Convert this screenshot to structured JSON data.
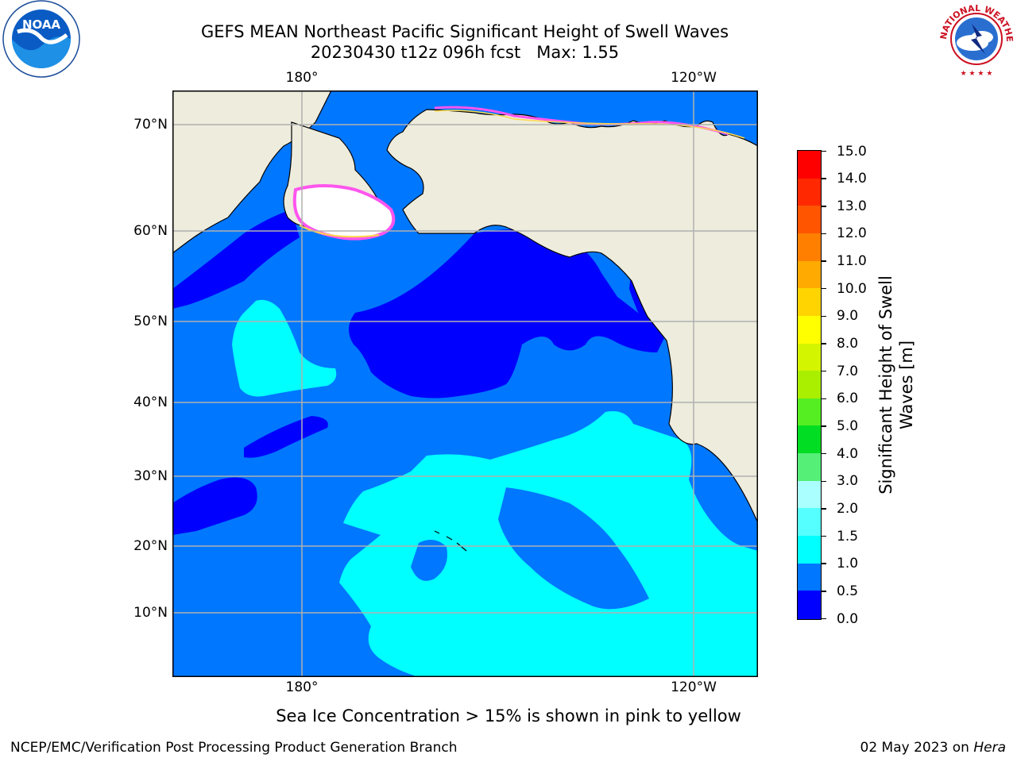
{
  "title": {
    "line1": "GEFS MEAN Northeast Pacific Significant Height of Swell Waves",
    "line2": "20230430 t12z 096h fcst   Max: 1.55"
  },
  "map": {
    "lon_labels_top": [
      "180°",
      "120°W"
    ],
    "lon_labels_bottom": [
      "180°",
      "120°W"
    ],
    "lat_labels": [
      "70°N",
      "60°N",
      "50°N",
      "40°N",
      "30°N",
      "20°N",
      "10°N"
    ],
    "colors": {
      "land": "#EDECDD",
      "sea_ice": "#FFFFFF",
      "ice_edge_pink": "#FF55EE",
      "ice_edge_yellow": "#FFD84A",
      "gridline": "#B0B0B0"
    }
  },
  "colorbar": {
    "title_line1": "Significant Height of Swell",
    "title_line2": "Waves [m]",
    "tick_labels": [
      "15.0",
      "14.0",
      "13.0",
      "12.0",
      "11.0",
      "10.0",
      "9.0",
      "8.0",
      "7.0",
      "6.0",
      "5.0",
      "4.0",
      "3.0",
      "2.0",
      "1.5",
      "1.0",
      "0.5",
      "0.0"
    ],
    "segments": [
      {
        "range": "14.0-15.0",
        "color": "#FF0000"
      },
      {
        "range": "13.0-14.0",
        "color": "#FF2800"
      },
      {
        "range": "12.0-13.0",
        "color": "#FF5500"
      },
      {
        "range": "11.0-12.0",
        "color": "#FF8000"
      },
      {
        "range": "10.0-11.0",
        "color": "#FFAA00"
      },
      {
        "range": "9.0-10.0",
        "color": "#FFD400"
      },
      {
        "range": "8.0-9.0",
        "color": "#FFFF00"
      },
      {
        "range": "7.0-8.0",
        "color": "#D4F500"
      },
      {
        "range": "6.0-7.0",
        "color": "#AAEE00"
      },
      {
        "range": "5.0-6.0",
        "color": "#55EE22"
      },
      {
        "range": "4.0-5.0",
        "color": "#00DD22"
      },
      {
        "range": "3.0-4.0",
        "color": "#55EE77"
      },
      {
        "range": "2.0-3.0",
        "color": "#AAFFFF"
      },
      {
        "range": "1.5-2.0",
        "color": "#55FFFF"
      },
      {
        "range": "1.0-1.5",
        "color": "#00FFFF"
      },
      {
        "range": "0.5-1.0",
        "color": "#0077FF"
      },
      {
        "range": "0.0-0.5",
        "color": "#0000FF"
      }
    ]
  },
  "note": "Sea Ice Concentration > 15% is shown in pink to yellow",
  "footer": {
    "left": "NCEP/EMC/Verification Post Processing Product Generation Branch",
    "right_prefix": "02 May 2023 on ",
    "right_host": "Hera"
  },
  "logos": {
    "left_text": "NOAA",
    "right_ring_text": "NATIONAL WEATHER SERVICE"
  }
}
